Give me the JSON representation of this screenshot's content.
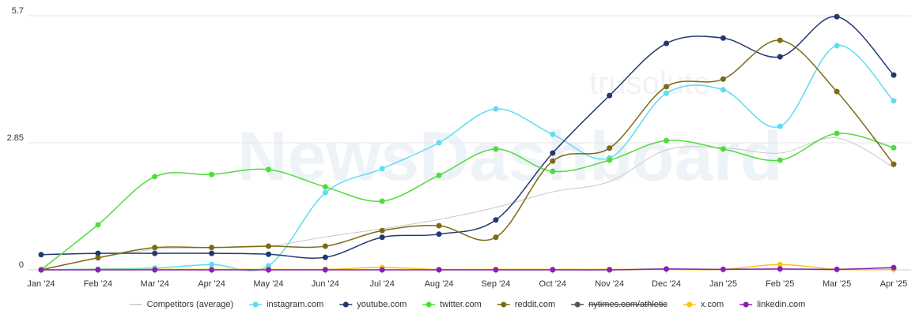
{
  "chart_data": {
    "type": "line",
    "watermark": [
      "trusolute",
      "NewsDashboard"
    ],
    "categories": [
      "Jan '24",
      "Feb '24",
      "Mar '24",
      "Apr '24",
      "May '24",
      "Jun '24",
      "Jul '24",
      "Aug '24",
      "Sep '24",
      "Oct '24",
      "Nov '24",
      "Dec '24",
      "Jan '25",
      "Feb '25",
      "Mar '25",
      "Apr '25"
    ],
    "ylim": [
      0,
      5.7
    ],
    "yticks": [
      0,
      2.85,
      5.7
    ],
    "grid": true,
    "legend": "bottom",
    "series": [
      {
        "name": "Competitors (average)",
        "color": "#c8c8c8",
        "markers": false,
        "values": [
          0,
          0.27,
          0.46,
          0.5,
          0.53,
          0.74,
          0.92,
          1.13,
          1.4,
          1.75,
          1.98,
          2.69,
          2.74,
          2.62,
          2.96,
          2.3
        ]
      },
      {
        "name": "instagram.com",
        "color": "#5ddcf2",
        "markers": true,
        "values": [
          0,
          0.02,
          0.04,
          0.12,
          0.09,
          1.73,
          2.27,
          2.85,
          3.61,
          3.04,
          2.51,
          3.96,
          4.04,
          3.22,
          5.03,
          3.79
        ]
      },
      {
        "name": "youtube.com",
        "color": "#22386e",
        "markers": true,
        "values": [
          0.34,
          0.37,
          0.37,
          0.37,
          0.35,
          0.28,
          0.73,
          0.8,
          1.12,
          2.62,
          3.91,
          5.08,
          5.2,
          4.78,
          5.68,
          4.37
        ]
      },
      {
        "name": "twitter.com",
        "color": "#4fdc3a",
        "markers": true,
        "values": [
          0,
          1.01,
          2.09,
          2.14,
          2.25,
          1.86,
          1.54,
          2.12,
          2.71,
          2.21,
          2.46,
          2.9,
          2.71,
          2.46,
          3.06,
          2.74
        ]
      },
      {
        "name": "reddit.com",
        "color": "#7a6b12",
        "markers": true,
        "values": [
          0,
          0.27,
          0.5,
          0.5,
          0.53,
          0.53,
          0.88,
          0.99,
          0.73,
          2.44,
          2.73,
          4.11,
          4.28,
          5.15,
          4.0,
          2.37
        ]
      },
      {
        "name": "nytimes.com/athletic",
        "color": "#555555",
        "markers": true,
        "hidden": true,
        "values": [
          null,
          null,
          null,
          null,
          null,
          null,
          null,
          null,
          null,
          null,
          null,
          null,
          null,
          null,
          null,
          null
        ]
      },
      {
        "name": "x.com",
        "color": "#f5c518",
        "markers": true,
        "values": [
          0,
          0.01,
          0.01,
          0.01,
          0.01,
          0.01,
          0.05,
          0.01,
          0.01,
          0.01,
          0.01,
          0.01,
          0.01,
          0.12,
          0.01,
          0.01
        ]
      },
      {
        "name": "linkedin.com",
        "color": "#8a1fb5",
        "markers": true,
        "values": [
          0,
          0,
          0,
          0,
          0,
          0,
          0,
          0,
          0,
          0,
          0,
          0.02,
          0.01,
          0.02,
          0.01,
          0.05
        ]
      }
    ]
  }
}
